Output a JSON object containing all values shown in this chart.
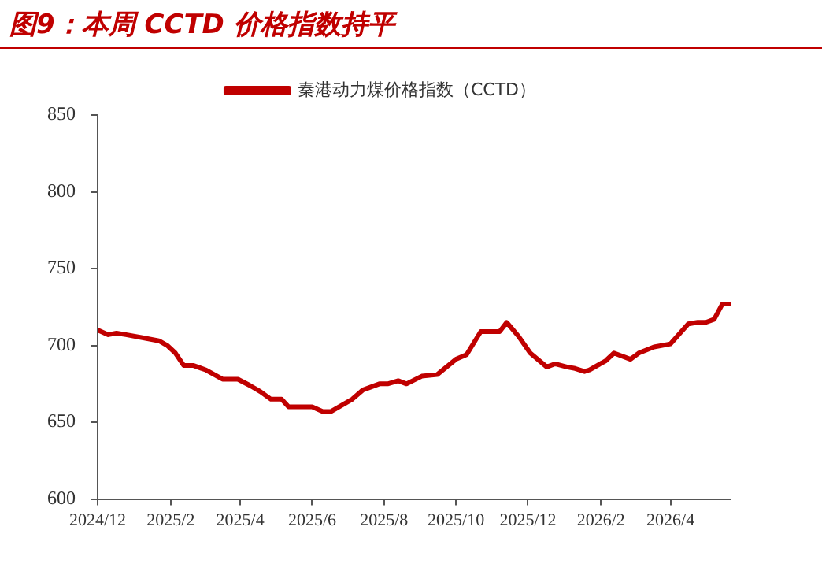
{
  "chart_data": {
    "type": "line",
    "title": "图9：本周 CCTD 价格指数持平",
    "x": [
      "2024-12-01",
      "2024-12-10",
      "2024-12-17",
      "2024-12-25",
      "2025-01-08",
      "2025-01-22",
      "2025-01-29",
      "2025-02-05",
      "2025-02-12",
      "2025-02-20",
      "2025-03-03",
      "2025-03-17",
      "2025-03-30",
      "2025-04-09",
      "2025-04-18",
      "2025-04-27",
      "2025-05-06",
      "2025-05-12",
      "2025-06-01",
      "2025-06-10",
      "2025-06-17",
      "2025-07-05",
      "2025-07-14",
      "2025-07-28",
      "2025-08-04",
      "2025-08-13",
      "2025-08-20",
      "2025-09-02",
      "2025-09-15",
      "2025-10-01",
      "2025-10-10",
      "2025-10-22",
      "2025-11-07",
      "2025-11-13",
      "2025-11-23",
      "2025-12-03",
      "2025-12-17",
      "2025-12-24",
      "2026-01-03",
      "2026-01-10",
      "2026-01-18",
      "2026-01-22",
      "2026-02-05",
      "2026-02-12",
      "2026-02-26",
      "2026-03-05",
      "2026-03-18",
      "2026-04-01",
      "2026-04-16",
      "2026-04-24",
      "2026-05-01",
      "2026-05-08",
      "2026-05-15",
      "2026-05-22"
    ],
    "series": [
      {
        "name": "秦港动力煤价格指数（CCTD）",
        "color": "#c00000",
        "values": [
          710,
          707,
          708,
          707,
          705,
          703,
          700,
          695,
          687,
          687,
          684,
          678,
          678,
          674,
          670,
          665,
          665,
          660,
          660,
          657,
          657,
          665,
          671,
          675,
          675,
          677,
          675,
          680,
          681,
          691,
          694,
          709,
          709,
          715,
          706,
          695,
          686,
          688,
          686,
          685,
          683,
          684,
          690,
          695,
          691,
          695,
          699,
          701,
          714,
          715,
          715,
          717,
          727,
          727
        ]
      }
    ],
    "xlim": [
      "2024-12-01",
      "2026-05-22"
    ],
    "xticks": [
      {
        "value": "2024-12-01",
        "label": "2024/12"
      },
      {
        "value": "2025-02-01",
        "label": "2025/2"
      },
      {
        "value": "2025-04-01",
        "label": "2025/4"
      },
      {
        "value": "2025-06-01",
        "label": "2025/6"
      },
      {
        "value": "2025-08-01",
        "label": "2025/8"
      },
      {
        "value": "2025-10-01",
        "label": "2025/10"
      },
      {
        "value": "2025-12-01",
        "label": "2025/12"
      },
      {
        "value": "2026-02-01",
        "label": "2026/2"
      },
      {
        "value": "2026-04-01",
        "label": "2026/4"
      }
    ],
    "ylim": [
      600,
      850
    ],
    "yticks": [
      600,
      650,
      700,
      750,
      800,
      850
    ],
    "grid": false,
    "legend": "top",
    "marker": "none",
    "line_style": "solid"
  }
}
